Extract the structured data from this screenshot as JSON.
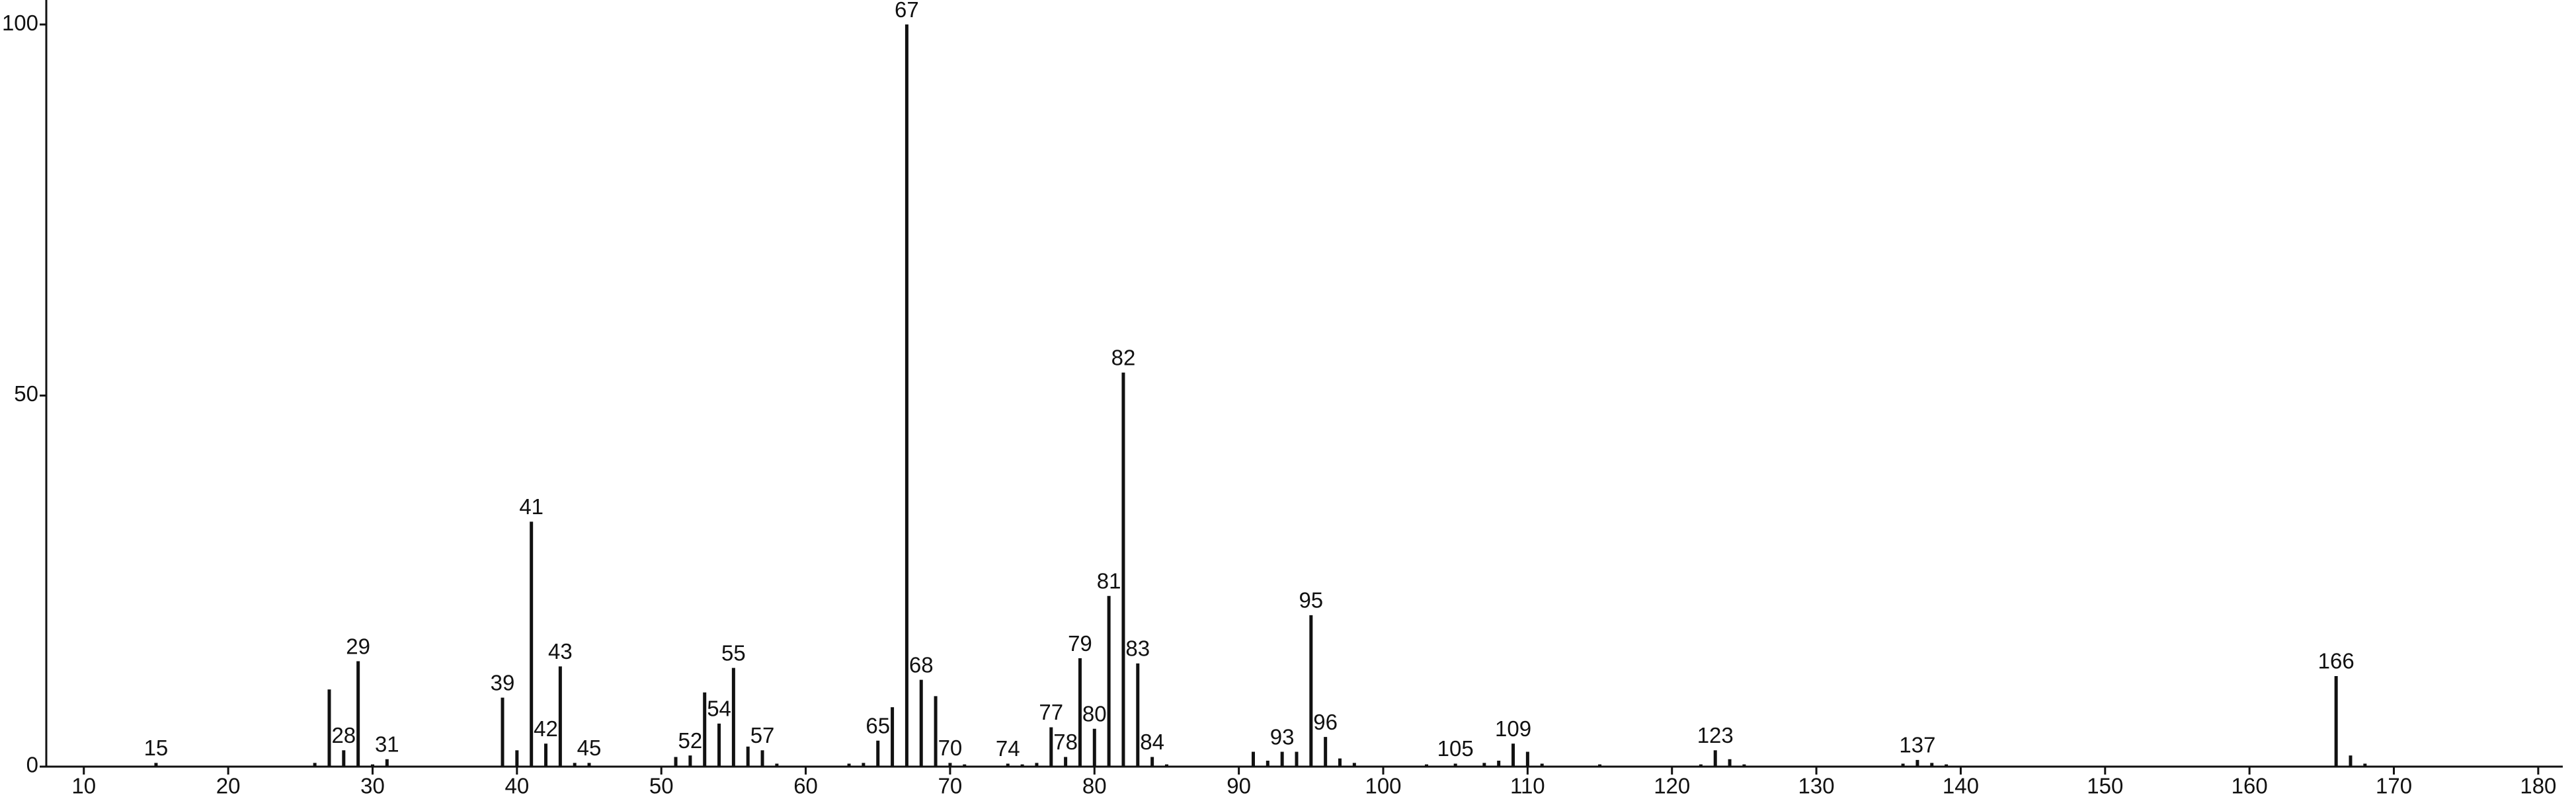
{
  "chart_data": {
    "type": "spectrum",
    "x": [
      15,
      26,
      27,
      28,
      29,
      30,
      31,
      39,
      40,
      41,
      42,
      43,
      44,
      45,
      51,
      52,
      53,
      54,
      55,
      56,
      57,
      58,
      63,
      64,
      65,
      66,
      67,
      68,
      69,
      70,
      71,
      74,
      75,
      76,
      77,
      78,
      79,
      80,
      81,
      82,
      83,
      84,
      85,
      91,
      92,
      93,
      94,
      95,
      96,
      97,
      98,
      103,
      105,
      107,
      108,
      109,
      110,
      111,
      115,
      122,
      123,
      124,
      125,
      136,
      137,
      138,
      139,
      166,
      167,
      168
    ],
    "values": [
      0.5,
      0.5,
      10.4,
      2.2,
      14.2,
      0.3,
      1,
      9.3,
      2.2,
      33,
      3.1,
      13.5,
      0.5,
      0.5,
      1.3,
      1.5,
      10,
      5.8,
      13.3,
      2.7,
      2.2,
      0.4,
      0.4,
      0.5,
      3.5,
      8,
      100,
      11.7,
      9.5,
      0.5,
      0.3,
      0.4,
      0.3,
      0.5,
      5.3,
      1.3,
      14.6,
      5.1,
      23,
      53.1,
      13.9,
      1.3,
      0.3,
      2,
      0.8,
      2,
      2,
      20.4,
      4,
      1.1,
      0.5,
      0.3,
      0.4,
      0.5,
      0.8,
      3.1,
      2,
      0.4,
      0.3,
      0.3,
      2.2,
      1,
      0.3,
      0.4,
      0.9,
      0.5,
      0.3,
      12.2,
      1.5,
      0.4
    ],
    "labels": [
      "15",
      null,
      null,
      "28",
      "29",
      null,
      "31",
      "39",
      null,
      "41",
      "42",
      "43",
      null,
      "45",
      null,
      "52",
      null,
      "54",
      "55",
      null,
      "57",
      null,
      null,
      null,
      "65",
      null,
      "67",
      "68",
      null,
      "70",
      null,
      "74",
      null,
      null,
      "77",
      "78",
      "79",
      "80",
      "81",
      "82",
      "83",
      "84",
      null,
      null,
      null,
      "93",
      null,
      "95",
      "96",
      null,
      null,
      null,
      "105",
      null,
      null,
      "109",
      null,
      null,
      null,
      null,
      "123",
      null,
      null,
      null,
      "137",
      null,
      null,
      "166",
      null,
      null
    ],
    "color": "#111111",
    "xlim": [
      7.4,
      181.7
    ],
    "xticks": [
      10,
      20,
      30,
      40,
      50,
      60,
      70,
      80,
      90,
      100,
      110,
      120,
      130,
      140,
      150,
      160,
      170,
      180
    ],
    "ylim": [
      0,
      103.3
    ],
    "yticks": [
      0,
      50,
      100
    ]
  }
}
